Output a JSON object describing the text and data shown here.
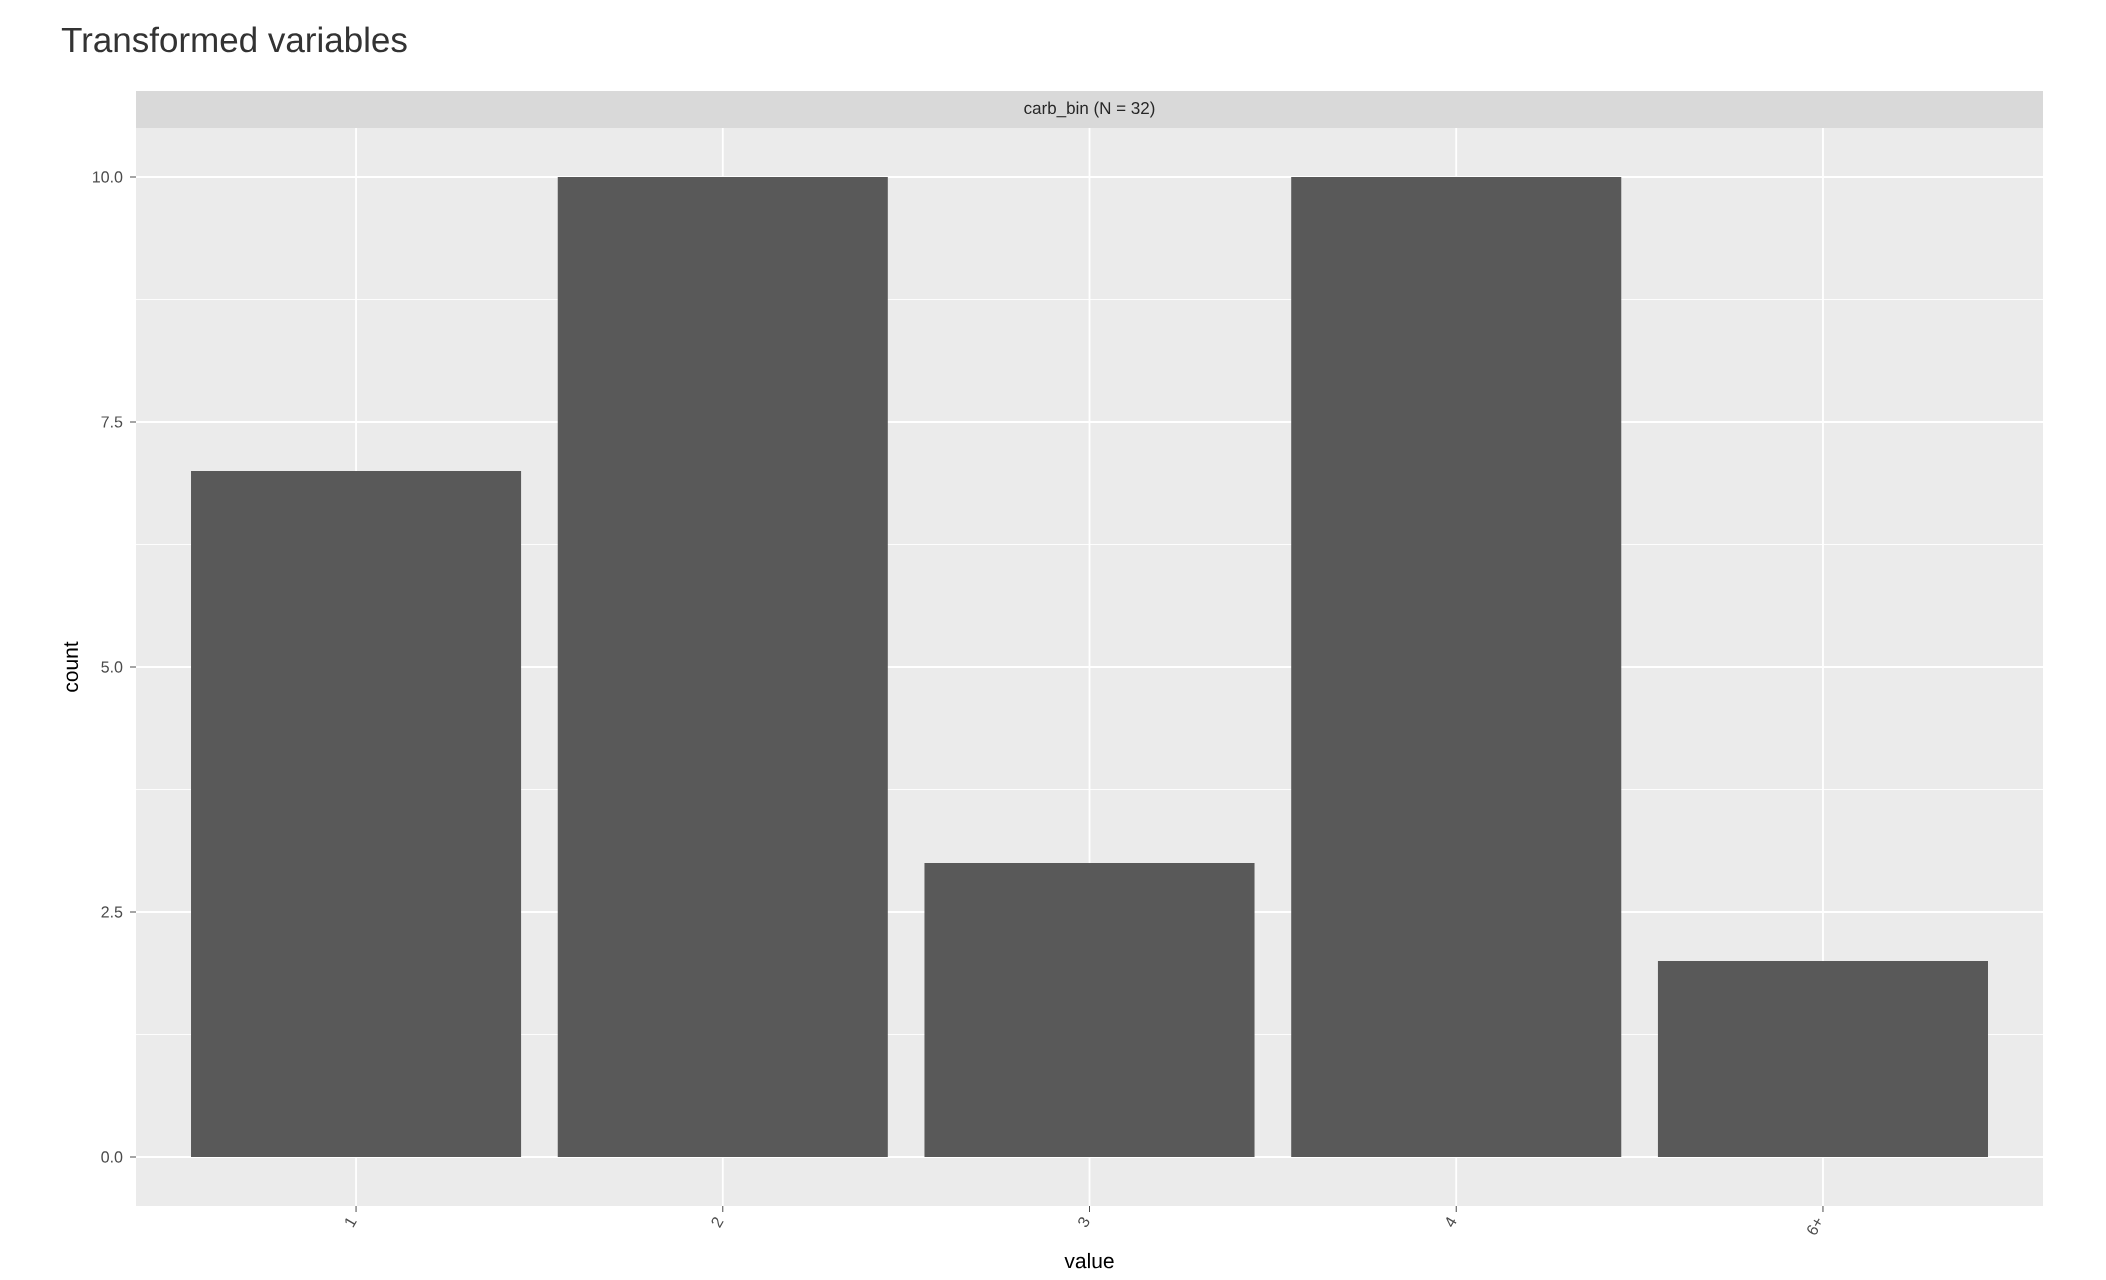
{
  "chart_data": {
    "type": "bar",
    "title": "Transformed variables",
    "subtitle": "carb_bin (N = 32)",
    "xlabel": "value",
    "ylabel": "count",
    "categories": [
      "1",
      "2",
      "3",
      "4",
      "6+"
    ],
    "values": [
      7,
      10,
      3,
      10,
      2
    ],
    "color": "#595959",
    "ylim": [
      -0.5,
      10.5
    ],
    "yticks": [
      {
        "value": 0,
        "label": "0.0"
      },
      {
        "value": 2.5,
        "label": "2.5"
      },
      {
        "value": 5,
        "label": "5.0"
      },
      {
        "value": 7.5,
        "label": "7.5"
      },
      {
        "value": 10,
        "label": "10.0"
      }
    ],
    "grid": true
  }
}
